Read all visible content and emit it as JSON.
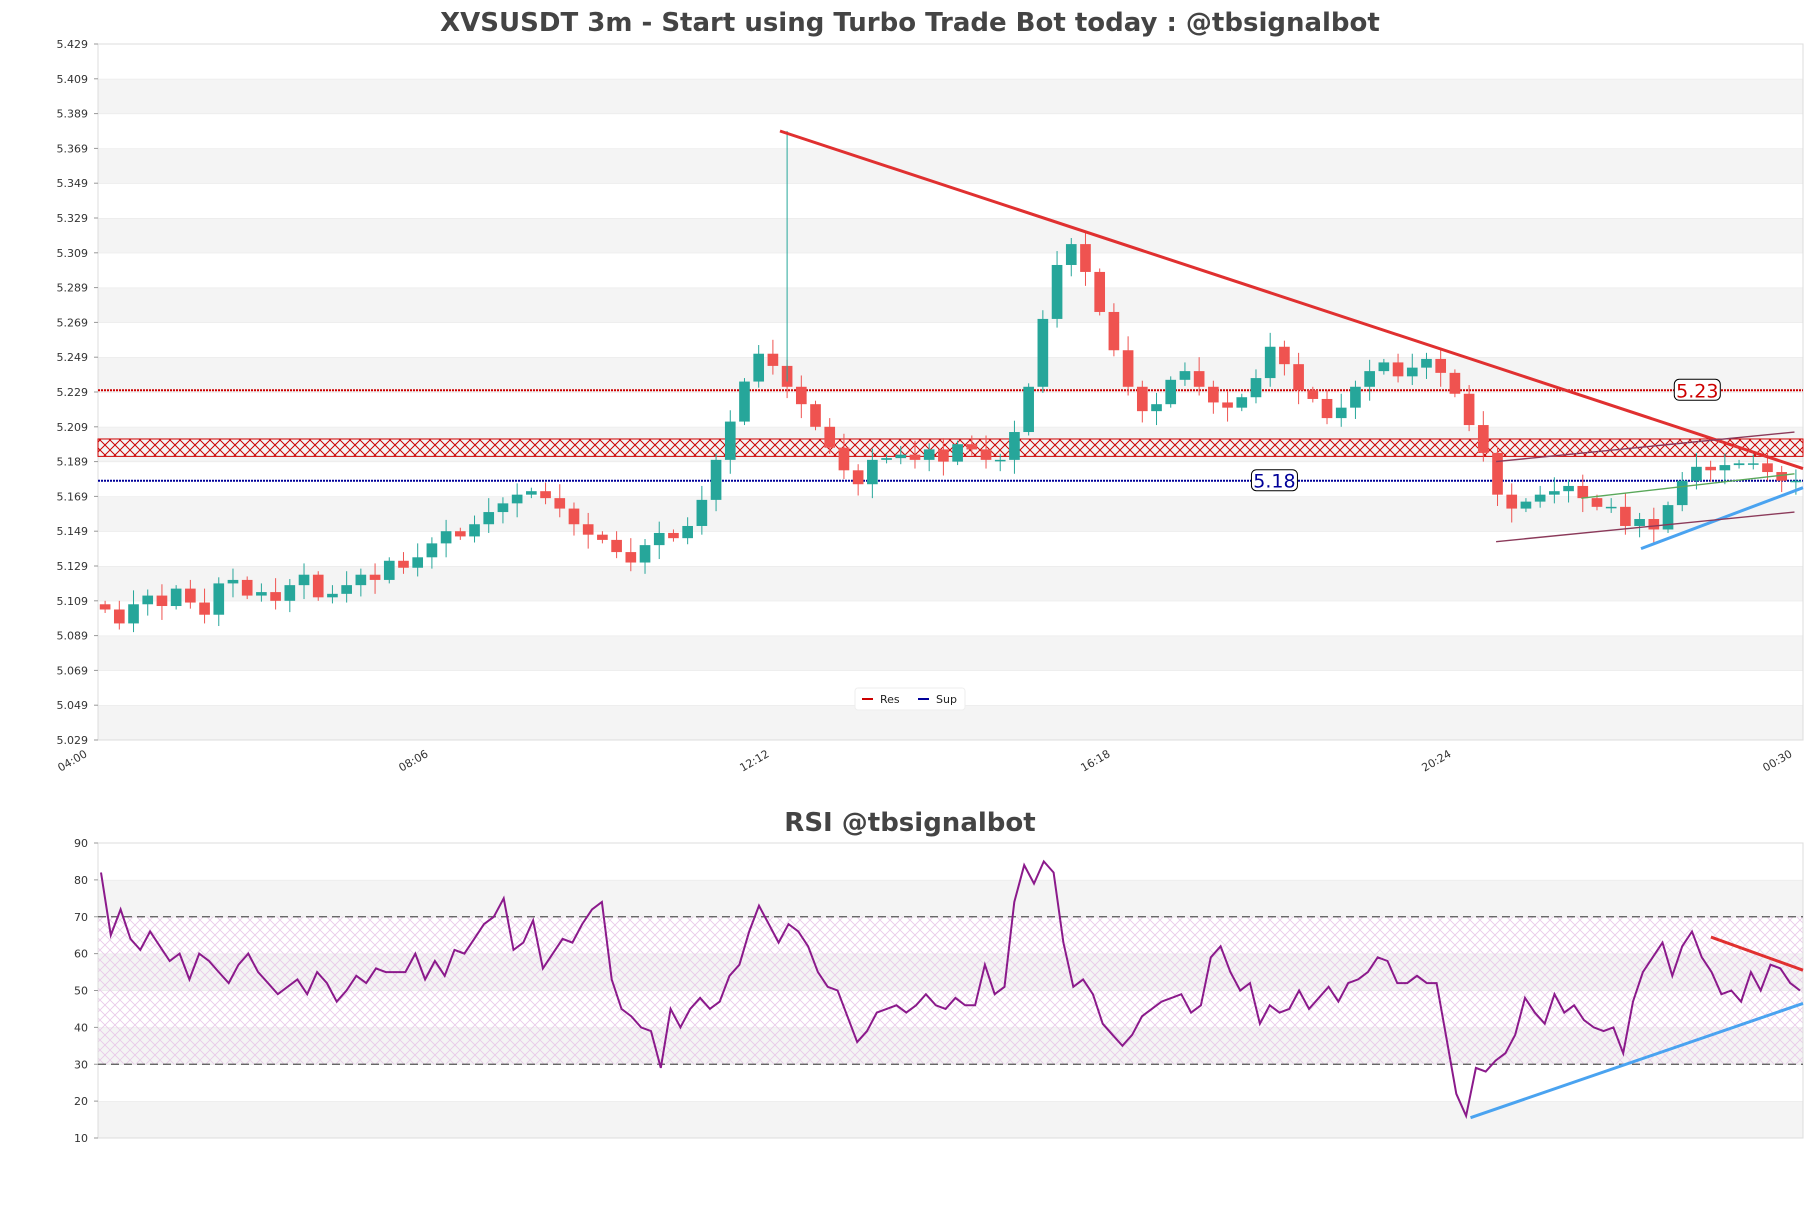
{
  "chart_data": [
    {
      "type": "candlestick",
      "title": "XVSUSDT 3m - Start using Turbo Trade Bot today : @tbsignalbot",
      "ylim": [
        5.029,
        5.429
      ],
      "y_ticks": [
        "5.029",
        "5.049",
        "5.069",
        "5.089",
        "5.109",
        "5.129",
        "5.149",
        "5.169",
        "5.189",
        "5.209",
        "5.229",
        "5.249",
        "5.269",
        "5.289",
        "5.309",
        "5.329",
        "5.349",
        "5.369",
        "5.389",
        "5.409",
        "5.429"
      ],
      "x_ticks": [
        "04:00",
        "08:06",
        "12:12",
        "16:18",
        "20:24",
        "00:30"
      ],
      "resistance_level": 5.23,
      "resistance_label": "5.23",
      "support_level": 5.18,
      "support_label": "5.18",
      "resistance_zone": [
        5.192,
        5.202
      ],
      "legend": [
        {
          "label": "Res",
          "color": "#cc0000"
        },
        {
          "label": "Sup",
          "color": "#000099"
        }
      ],
      "trendlines": [
        {
          "name": "resistance-trendline",
          "from": [
            0.4,
            5.379
          ],
          "to": [
            1.0,
            5.185
          ],
          "color": "#e03030"
        },
        {
          "name": "support-trendline",
          "from": [
            0.905,
            5.139
          ],
          "to": [
            1.0,
            5.174
          ],
          "color": "#4aa3f0"
        },
        {
          "name": "channel-top",
          "from": [
            0.82,
            5.189
          ],
          "to": [
            0.995,
            5.206
          ],
          "color": "#8b3a5a"
        },
        {
          "name": "channel-bottom",
          "from": [
            0.82,
            5.143
          ],
          "to": [
            0.995,
            5.16
          ],
          "color": "#8b3a5a"
        },
        {
          "name": "mid-line",
          "from": [
            0.87,
            5.168
          ],
          "to": [
            0.995,
            5.182
          ],
          "color": "#5aa85a"
        }
      ],
      "candles_close_path": [
        5.104,
        5.096,
        5.107,
        5.112,
        5.106,
        5.116,
        5.108,
        5.101,
        5.119,
        5.121,
        5.112,
        5.114,
        5.109,
        5.118,
        5.124,
        5.111,
        5.113,
        5.118,
        5.124,
        5.121,
        5.132,
        5.128,
        5.134,
        5.142,
        5.149,
        5.146,
        5.153,
        5.16,
        5.165,
        5.17,
        5.172,
        5.168,
        5.162,
        5.153,
        5.147,
        5.144,
        5.137,
        5.131,
        5.141,
        5.148,
        5.145,
        5.152,
        5.167,
        5.19,
        5.212,
        5.235,
        5.251,
        5.244,
        5.232,
        5.222,
        5.209,
        5.197,
        5.184,
        5.176,
        5.19,
        5.191,
        5.193,
        5.19,
        5.196,
        5.189,
        5.199,
        5.196,
        5.19,
        5.19,
        5.206,
        5.232,
        5.271,
        5.302,
        5.314,
        5.298,
        5.275,
        5.253,
        5.232,
        5.218,
        5.222,
        5.236,
        5.241,
        5.232,
        5.223,
        5.22,
        5.226,
        5.237,
        5.255,
        5.245,
        5.23,
        5.225,
        5.214,
        5.22,
        5.232,
        5.241,
        5.246,
        5.238,
        5.243,
        5.248,
        5.24,
        5.228,
        5.21,
        5.194,
        5.17,
        5.162,
        5.166,
        5.17,
        5.172,
        5.175,
        5.168,
        5.163,
        5.163,
        5.152,
        5.156,
        5.15,
        5.164,
        5.178,
        5.186,
        5.184,
        5.187,
        5.188,
        5.188,
        5.183,
        5.178,
        5.178
      ],
      "candles_box": {
        "width": 5,
        "up_color": "#26a69a",
        "down_color": "#ef5350"
      }
    },
    {
      "type": "line",
      "title": "RSI @tbsignalbot",
      "ylim": [
        10,
        90
      ],
      "y_ticks": [
        "10",
        "20",
        "30",
        "40",
        "50",
        "60",
        "70",
        "80",
        "90"
      ],
      "overbought": 70,
      "oversold": 30,
      "line_color": "#8b1a8b",
      "values": [
        82,
        65,
        72,
        64,
        61,
        66,
        62,
        58,
        60,
        53,
        60,
        58,
        55,
        52,
        57,
        60,
        55,
        52,
        49,
        51,
        53,
        49,
        55,
        52,
        47,
        50,
        54,
        52,
        56,
        55,
        55,
        55,
        60,
        53,
        58,
        54,
        61,
        60,
        64,
        68,
        70,
        75,
        61,
        63,
        69,
        56,
        60,
        64,
        63,
        68,
        72,
        74,
        53,
        45,
        43,
        40,
        39,
        29,
        45,
        40,
        45,
        48,
        45,
        47,
        54,
        57,
        66,
        73,
        68,
        63,
        68,
        66,
        62,
        55,
        51,
        50,
        43,
        36,
        39,
        44,
        45,
        46,
        44,
        46,
        49,
        46,
        45,
        48,
        46,
        46,
        57,
        49,
        51,
        74,
        84,
        79,
        85,
        82,
        63,
        51,
        53,
        49,
        41,
        38,
        35,
        38,
        43,
        45,
        47,
        48,
        49,
        44,
        46,
        59,
        62,
        55,
        50,
        52,
        41,
        46,
        44,
        45,
        50,
        45,
        48,
        51,
        47,
        52,
        53,
        55,
        59,
        58,
        52,
        52,
        54,
        52,
        52,
        37,
        22,
        16,
        29,
        28,
        31,
        33,
        38,
        48,
        44,
        41,
        49,
        44,
        46,
        42,
        40,
        39,
        40,
        33,
        47,
        55,
        59,
        63,
        54,
        62,
        66,
        59,
        55,
        49,
        50,
        47,
        55,
        50,
        57,
        56,
        52,
        50
      ],
      "trendlines": [
        {
          "name": "rsi-support-trendline",
          "from": [
            0.805,
            15.5
          ],
          "to": [
            1.0,
            46.5
          ],
          "color": "#4aa3f0"
        },
        {
          "name": "rsi-resistance-trendline",
          "from": [
            0.946,
            64.5
          ],
          "to": [
            1.0,
            55.5
          ],
          "color": "#e03030"
        }
      ]
    }
  ]
}
